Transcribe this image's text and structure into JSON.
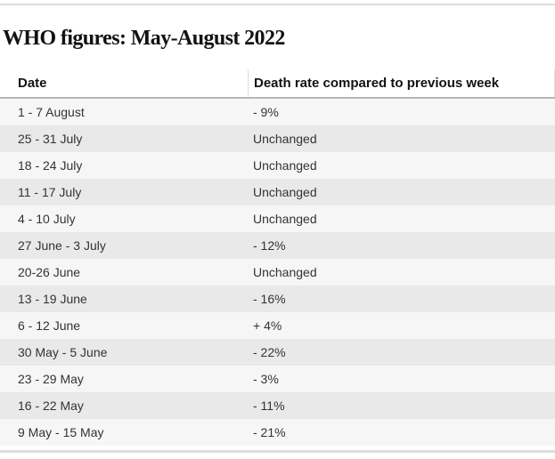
{
  "chart_data": {
    "type": "table",
    "title": "WHO figures: May-August 2022",
    "columns": [
      "Date",
      "Death rate compared to previous week"
    ],
    "rows": [
      [
        "1 - 7 August",
        "- 9%"
      ],
      [
        "25 - 31 July",
        "Unchanged"
      ],
      [
        "18 - 24 July",
        "Unchanged"
      ],
      [
        "11 - 17 July",
        "Unchanged"
      ],
      [
        "4 - 10 July",
        "Unchanged"
      ],
      [
        "27 June - 3 July",
        "- 12%"
      ],
      [
        "20-26 June",
        "Unchanged"
      ],
      [
        "13 - 19 June",
        "- 16%"
      ],
      [
        "6 - 12 June",
        "+ 4%"
      ],
      [
        "30 May - 5 June",
        "- 22%"
      ],
      [
        "23 - 29 May",
        "- 3%"
      ],
      [
        "16 - 22 May",
        "- 11%"
      ],
      [
        "9 May - 15 May",
        "- 21%"
      ]
    ]
  },
  "colors": {
    "page_bg": "#ffffff",
    "top_rule": "#dcdcdc",
    "title_text": "#121212",
    "header_text": "#121212",
    "header_divider": "#dcdcdc",
    "header_border": "#b6b6b6",
    "row_odd_bg": "#f6f6f6",
    "row_even_bg": "#e9e9e9",
    "cell_text": "#333333",
    "bottom_rule": "#dcdcdc"
  }
}
